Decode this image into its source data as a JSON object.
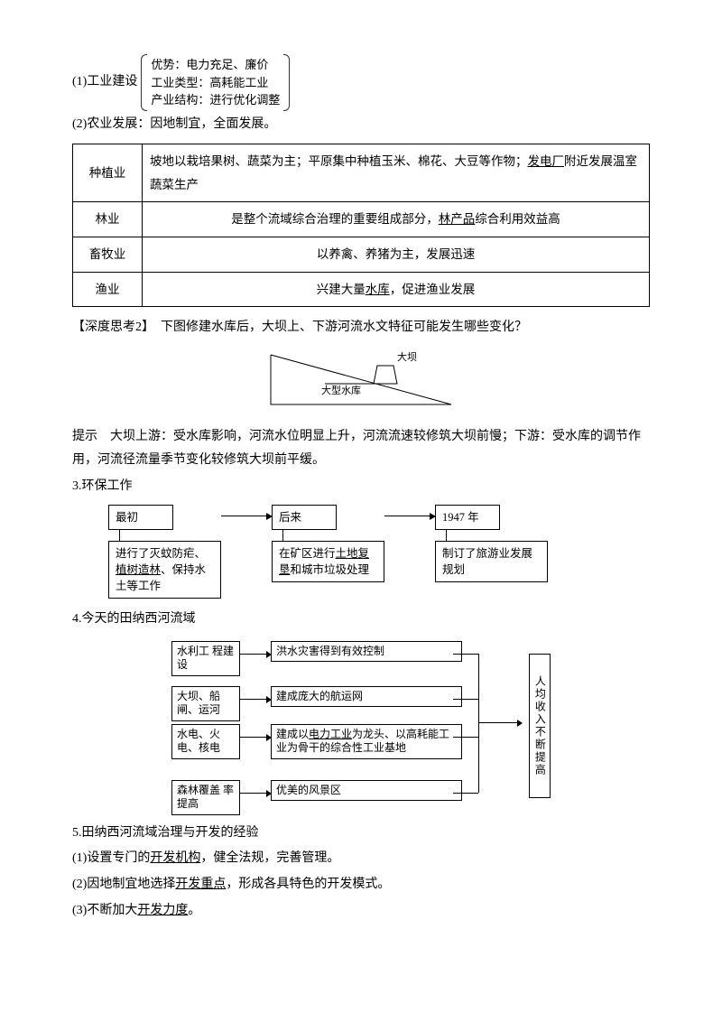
{
  "sec1": {
    "label": "(1)工业建设",
    "brace": {
      "l1": "优势：电力充足、廉价",
      "l2": "工业类型：高耗能工业",
      "l3": "产业结构：进行优化调整"
    }
  },
  "sec2": {
    "text": "(2)农业发展：因地制宜，全面发展。"
  },
  "table": {
    "rows": [
      {
        "h": "种植业",
        "c_pre": "坡地以栽培果树、蔬菜为主；平原集中种植玉米、棉花、大豆等作物；",
        "c_u": "发电厂",
        "c_post": "附近发展温室蔬菜生产"
      },
      {
        "h": "林业",
        "c_pre": "是整个流域综合治理的重要组成部分，",
        "c_u": "林产品",
        "c_post": "综合利用效益高"
      },
      {
        "h": "畜牧业",
        "c_pre": "以养禽、养猪为主，发展迅速",
        "c_u": "",
        "c_post": ""
      },
      {
        "h": "渔业",
        "c_pre": "兴建大量",
        "c_u": "水库",
        "c_post": "，促进渔业发展"
      }
    ]
  },
  "think2": {
    "title": "【深度思考2】　下图修建水库后，大坝上、下游河流水文特征可能发生哪些变化？",
    "dam_label_top": "大坝",
    "dam_label_left": "大型水库",
    "hint": "提示　大坝上游：受水库影响，河流水位明显上升，河流流速较修筑大坝前慢；下游：受水库的调节作用，河流径流量季节变化较修筑大坝前平缓。"
  },
  "sec3": {
    "title": "3.环保工作",
    "cols": [
      {
        "top": "最初",
        "bot_parts": [
          "进行了灭蚊防疟、",
          "植树造林",
          "、保持水土等工作"
        ],
        "u_idx": 1
      },
      {
        "top": "后来",
        "bot_parts": [
          "在矿区进行",
          "土地复垦",
          "和城市垃圾处理"
        ],
        "u_idx": 1
      },
      {
        "top": "1947 年",
        "bot_parts": [
          "制订了旅游业发展规划"
        ],
        "u_idx": -1
      }
    ]
  },
  "sec4": {
    "title": "4.今天的田纳西河流域",
    "left": [
      "水利工\n程建设",
      "大坝、船\n闸、运河",
      "水电、火\n电、核电",
      "森林覆盖\n率提高"
    ],
    "mid": [
      "洪水灾害得到有效控制",
      "建成庞大的航运网",
      "建成以电力工业为龙头、以高耗能工业为骨干的综合性工业基地",
      "优美的风景区"
    ],
    "mid_u": [
      "",
      "",
      "电力工业",
      ""
    ],
    "right": "人均收入不断提高"
  },
  "sec5": {
    "title": "5.田纳西河流域治理与开发的经验",
    "items": [
      {
        "pre": "(1)设置专门的",
        "u": "开发机构",
        "post": "，健全法规，完善管理。"
      },
      {
        "pre": "(2)因地制宜地选择",
        "u": "开发重点",
        "post": "，形成各具特色的开发模式。"
      },
      {
        "pre": "(3)不断加大",
        "u": "开发力度",
        "post": "。"
      }
    ]
  }
}
